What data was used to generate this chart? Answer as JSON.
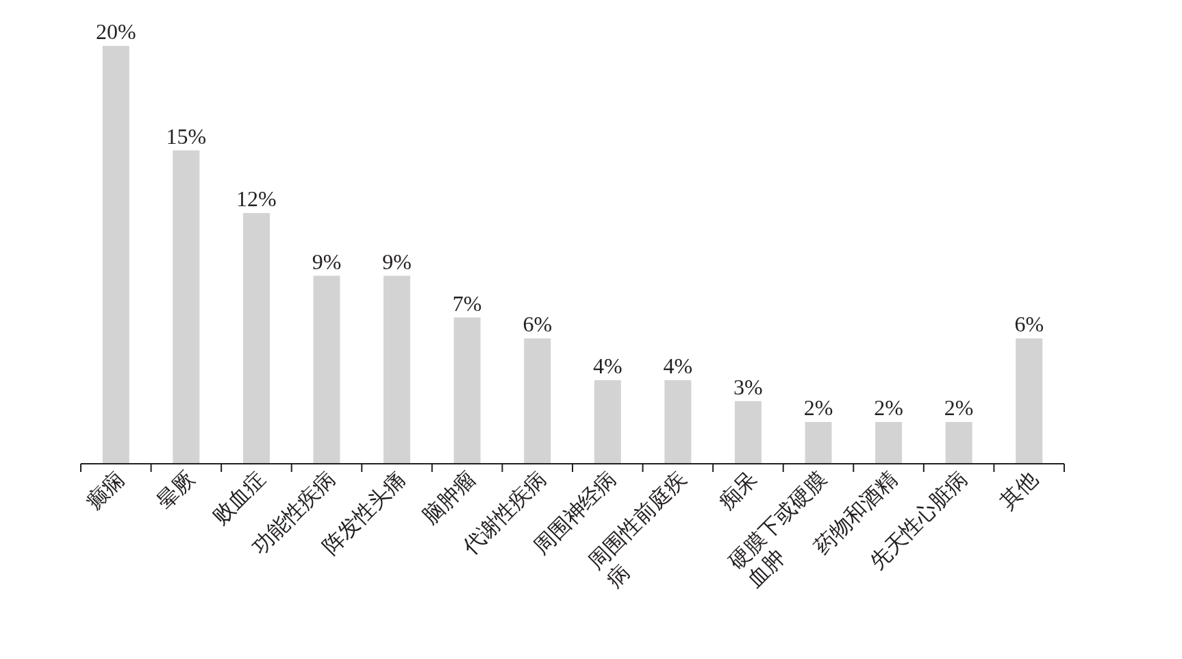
{
  "chart_data": {
    "type": "bar",
    "categories": [
      "癫痫",
      "晕厥",
      "败血症",
      "功能性疾病",
      "阵发性头痛",
      "脑肿瘤",
      "代谢性疾病",
      "周围神经病",
      "周围性前庭疾病",
      "痴呆",
      "硬膜下或硬膜血肿",
      "药物和酒精",
      "先天性心脏病",
      "其他"
    ],
    "values": [
      20,
      15,
      12,
      9,
      9,
      7,
      6,
      4,
      4,
      3,
      2,
      2,
      2,
      6
    ],
    "value_labels": [
      "20%",
      "15%",
      "12%",
      "9%",
      "9%",
      "7%",
      "6%",
      "4%",
      "4%",
      "3%",
      "2%",
      "2%",
      "2%",
      "6%"
    ],
    "color": "#d3d3d3"
  }
}
